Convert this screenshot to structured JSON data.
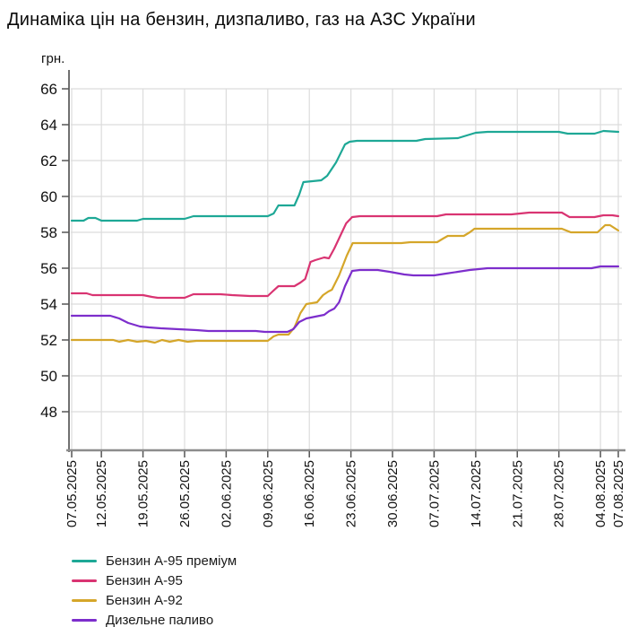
{
  "chart_data": {
    "type": "line",
    "title": "Динаміка цін на бензин, дизпаливо, газ на АЗС України",
    "y_unit_label": "грн.",
    "ylabel": "грн.",
    "xlabel": "",
    "ylim": [
      46,
      67
    ],
    "yticks": [
      66,
      64,
      62,
      60,
      58,
      56,
      54,
      52,
      50,
      48
    ],
    "x_total_days": 92,
    "xticks": [
      {
        "day": 0,
        "label": "07.05.2025"
      },
      {
        "day": 5,
        "label": "12.05.2025"
      },
      {
        "day": 12,
        "label": "19.05.2025"
      },
      {
        "day": 19,
        "label": "26.05.2025"
      },
      {
        "day": 26,
        "label": "02.06.2025"
      },
      {
        "day": 33,
        "label": "09.06.2025"
      },
      {
        "day": 40,
        "label": "16.06.2025"
      },
      {
        "day": 47,
        "label": "23.06.2025"
      },
      {
        "day": 54,
        "label": "30.06.2025"
      },
      {
        "day": 61,
        "label": "07.07.2025"
      },
      {
        "day": 68,
        "label": "14.07.2025"
      },
      {
        "day": 75,
        "label": "21.07.2025"
      },
      {
        "day": 82,
        "label": "28.07.2025"
      },
      {
        "day": 89,
        "label": "04.08.2025"
      },
      {
        "day": 92,
        "label": "07.08.2025"
      }
    ],
    "grid": true,
    "legend_position": "bottom-left",
    "series": [
      {
        "name": "Бензин А-95 преміум",
        "slug": "a95-premium",
        "color": "#1ea896",
        "points": [
          [
            0,
            58.65
          ],
          [
            2,
            58.65
          ],
          [
            2.8,
            58.8
          ],
          [
            4,
            58.8
          ],
          [
            5,
            58.65
          ],
          [
            11,
            58.65
          ],
          [
            12,
            58.75
          ],
          [
            19,
            58.75
          ],
          [
            20.5,
            58.9
          ],
          [
            33,
            58.9
          ],
          [
            34,
            59.05
          ],
          [
            34.8,
            59.5
          ],
          [
            37.5,
            59.5
          ],
          [
            38.3,
            60.1
          ],
          [
            39,
            60.8
          ],
          [
            42,
            60.9
          ],
          [
            43,
            61.15
          ],
          [
            44.5,
            61.9
          ],
          [
            46,
            62.9
          ],
          [
            46.8,
            63.05
          ],
          [
            48,
            63.1
          ],
          [
            58,
            63.1
          ],
          [
            59.5,
            63.2
          ],
          [
            65,
            63.25
          ],
          [
            66.5,
            63.4
          ],
          [
            68,
            63.55
          ],
          [
            70,
            63.6
          ],
          [
            82,
            63.6
          ],
          [
            83.5,
            63.5
          ],
          [
            88,
            63.5
          ],
          [
            89.5,
            63.65
          ],
          [
            92,
            63.6
          ]
        ]
      },
      {
        "name": "Бензин А-95",
        "slug": "a95",
        "color": "#d93472",
        "points": [
          [
            0,
            54.6
          ],
          [
            2.5,
            54.6
          ],
          [
            3.5,
            54.5
          ],
          [
            12,
            54.5
          ],
          [
            13.5,
            54.4
          ],
          [
            14.5,
            54.35
          ],
          [
            19,
            54.35
          ],
          [
            20.5,
            54.55
          ],
          [
            25,
            54.55
          ],
          [
            27,
            54.5
          ],
          [
            30,
            54.45
          ],
          [
            33,
            54.45
          ],
          [
            33.8,
            54.7
          ],
          [
            34.8,
            55.0
          ],
          [
            37.5,
            55.0
          ],
          [
            38.5,
            55.2
          ],
          [
            39.3,
            55.4
          ],
          [
            40.2,
            56.35
          ],
          [
            41,
            56.45
          ],
          [
            42.5,
            56.6
          ],
          [
            43.3,
            56.55
          ],
          [
            44.2,
            57.1
          ],
          [
            45.2,
            57.8
          ],
          [
            46.2,
            58.5
          ],
          [
            47.2,
            58.85
          ],
          [
            48.5,
            58.9
          ],
          [
            61.5,
            58.9
          ],
          [
            63,
            59.0
          ],
          [
            74,
            59.0
          ],
          [
            77,
            59.1
          ],
          [
            82.5,
            59.1
          ],
          [
            83.8,
            58.85
          ],
          [
            88,
            58.85
          ],
          [
            89.5,
            58.95
          ],
          [
            91,
            58.95
          ],
          [
            92,
            58.9
          ]
        ]
      },
      {
        "name": "Бензин А-92",
        "slug": "a92",
        "color": "#d5a62a",
        "points": [
          [
            0,
            52.0
          ],
          [
            7,
            52.0
          ],
          [
            8,
            51.9
          ],
          [
            9.5,
            52.0
          ],
          [
            11,
            51.9
          ],
          [
            12.5,
            51.95
          ],
          [
            14,
            51.85
          ],
          [
            15.2,
            52.0
          ],
          [
            16.5,
            51.9
          ],
          [
            18,
            52.0
          ],
          [
            19.5,
            51.9
          ],
          [
            21,
            51.95
          ],
          [
            33,
            51.95
          ],
          [
            34,
            52.2
          ],
          [
            34.8,
            52.3
          ],
          [
            36.5,
            52.3
          ],
          [
            37.5,
            52.7
          ],
          [
            38.5,
            53.5
          ],
          [
            39.5,
            54.0
          ],
          [
            41.3,
            54.1
          ],
          [
            42.3,
            54.5
          ],
          [
            43.2,
            54.7
          ],
          [
            43.8,
            54.8
          ],
          [
            45,
            55.6
          ],
          [
            46.3,
            56.7
          ],
          [
            47.3,
            57.4
          ],
          [
            55.5,
            57.4
          ],
          [
            57,
            57.45
          ],
          [
            61.5,
            57.45
          ],
          [
            62.5,
            57.65
          ],
          [
            63.3,
            57.8
          ],
          [
            66,
            57.8
          ],
          [
            67,
            58.0
          ],
          [
            67.8,
            58.2
          ],
          [
            82.5,
            58.2
          ],
          [
            84,
            58.0
          ],
          [
            88.5,
            58.0
          ],
          [
            89.8,
            58.4
          ],
          [
            90.6,
            58.4
          ],
          [
            92,
            58.1
          ]
        ]
      },
      {
        "name": "Дизельне паливо",
        "slug": "diesel",
        "color": "#7d2ecc",
        "points": [
          [
            0,
            53.35
          ],
          [
            6.5,
            53.35
          ],
          [
            8,
            53.2
          ],
          [
            9.5,
            52.95
          ],
          [
            11.5,
            52.75
          ],
          [
            13,
            52.7
          ],
          [
            15,
            52.65
          ],
          [
            18,
            52.6
          ],
          [
            21,
            52.55
          ],
          [
            23,
            52.5
          ],
          [
            31,
            52.5
          ],
          [
            32.5,
            52.45
          ],
          [
            36.3,
            52.45
          ],
          [
            37.3,
            52.6
          ],
          [
            38.3,
            53.0
          ],
          [
            39.5,
            53.2
          ],
          [
            41,
            53.3
          ],
          [
            42.5,
            53.4
          ],
          [
            43.3,
            53.6
          ],
          [
            44.2,
            53.75
          ],
          [
            45,
            54.1
          ],
          [
            46,
            55.0
          ],
          [
            47.2,
            55.85
          ],
          [
            48.5,
            55.9
          ],
          [
            51.5,
            55.9
          ],
          [
            53.5,
            55.8
          ],
          [
            56,
            55.65
          ],
          [
            57.5,
            55.6
          ],
          [
            61,
            55.6
          ],
          [
            63,
            55.7
          ],
          [
            65,
            55.8
          ],
          [
            67,
            55.9
          ],
          [
            68.5,
            55.95
          ],
          [
            70,
            56.0
          ],
          [
            87.5,
            56.0
          ],
          [
            89,
            56.1
          ],
          [
            92,
            56.1
          ]
        ]
      }
    ],
    "colors": {
      "grid": "#dcdcdc",
      "y_axis": "#707070",
      "x_axis": "#8c8c8c",
      "tick": "#555555",
      "text": "#111111"
    }
  }
}
